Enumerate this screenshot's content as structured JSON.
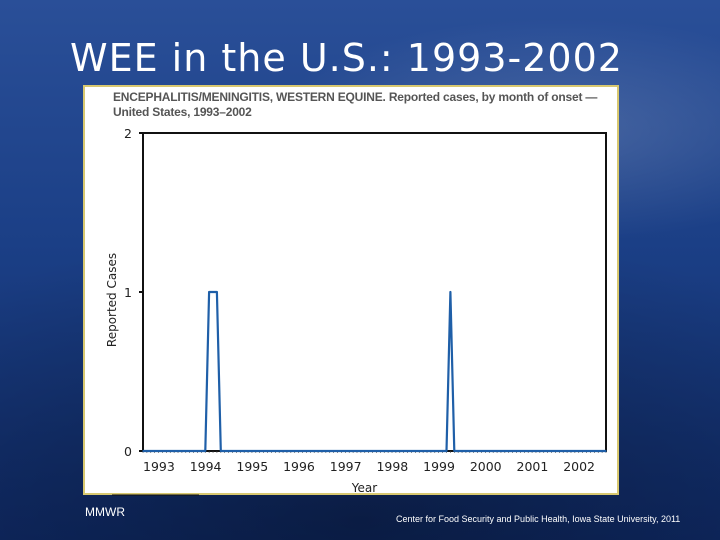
{
  "slide": {
    "title": "WEE in the U.S.: 1993-2002",
    "source_label": "MMWR",
    "footer": "Center for Food Security and Public Health, Iowa State University, 2011"
  },
  "chart_data": {
    "type": "line",
    "title": "ENCEPHALITIS/MENINGITIS, WESTERN EQUINE. Reported cases, by month of onset — United States, 1993–2002",
    "xlabel": "Year",
    "ylabel": "Reported Cases",
    "ylim": [
      0,
      2
    ],
    "yticks": [
      "0",
      "1",
      "2"
    ],
    "xticks": [
      "1993",
      "1994",
      "1995",
      "1996",
      "1997",
      "1998",
      "1999",
      "2000",
      "2001",
      "2002"
    ],
    "grid": false,
    "series": [
      {
        "color": "#1f5fa8",
        "points": [
          {
            "x": "1993-01",
            "y": 0
          },
          {
            "x": "1994-05",
            "y": 0
          },
          {
            "x": "1994-06",
            "y": 1
          },
          {
            "x": "1994-07",
            "y": 1
          },
          {
            "x": "1994-08",
            "y": 1
          },
          {
            "x": "1994-09",
            "y": 0
          },
          {
            "x": "1999-07",
            "y": 0
          },
          {
            "x": "1999-08",
            "y": 1
          },
          {
            "x": "1999-09",
            "y": 0
          },
          {
            "x": "2002-12",
            "y": 0
          }
        ]
      }
    ]
  }
}
